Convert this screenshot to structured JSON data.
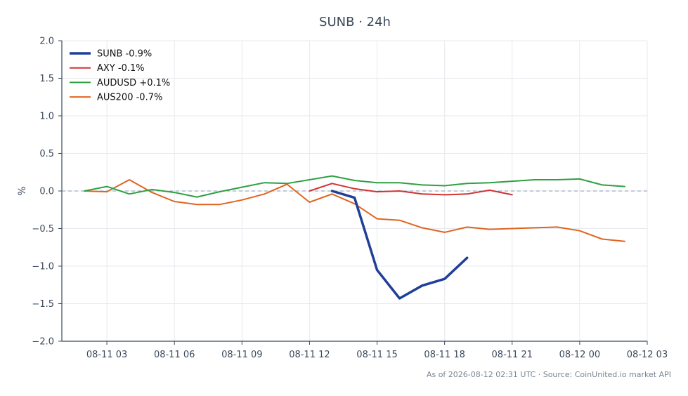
{
  "chart_data": {
    "type": "line",
    "title": "SUNB · 24h",
    "ylabel": "%",
    "ylim": [
      -2.0,
      2.0
    ],
    "yticks": [
      -2.0,
      -1.5,
      -1.0,
      -0.5,
      0.0,
      0.5,
      1.0,
      1.5,
      2.0
    ],
    "ytick_labels": [
      "−2.0",
      "−1.5",
      "−1.0",
      "−0.5",
      "0.0",
      "0.5",
      "1.0",
      "1.5",
      "2.0"
    ],
    "x_unit": "hours after 08-11 00:00 UTC",
    "xlim": [
      1.0,
      27.0
    ],
    "xticks": [
      3,
      6,
      9,
      12,
      15,
      18,
      21,
      24,
      27
    ],
    "xtick_labels": [
      "08-11 03",
      "08-11 06",
      "08-11 09",
      "08-11 12",
      "08-11 15",
      "08-11 18",
      "08-11 21",
      "08-12 00",
      "08-12 03"
    ],
    "baseline": 0.0,
    "grid": true,
    "legend_position": "top-left",
    "series": [
      {
        "name": "SUNB -0.9%",
        "color": "#1f3f99",
        "width": 3.5,
        "x": [
          13,
          14,
          15,
          16,
          17,
          18,
          19
        ],
        "y": [
          0.0,
          -0.09,
          -1.05,
          -1.43,
          -1.26,
          -1.17,
          -0.89
        ]
      },
      {
        "name": "AXY -0.1%",
        "color": "#cf3333",
        "width": 2,
        "x": [
          12,
          13,
          14,
          15,
          16,
          17,
          18,
          19,
          20,
          21
        ],
        "y": [
          0.0,
          0.1,
          0.03,
          -0.01,
          0.0,
          -0.04,
          -0.05,
          -0.04,
          0.01,
          -0.05
        ]
      },
      {
        "name": "AUDUSD +0.1%",
        "color": "#2ea043",
        "width": 2,
        "x": [
          2,
          3,
          4,
          5,
          6,
          7,
          8,
          9,
          10,
          11,
          12,
          13,
          14,
          15,
          16,
          17,
          18,
          19,
          20,
          21,
          22,
          23,
          24,
          25,
          26
        ],
        "y": [
          0.0,
          0.06,
          -0.04,
          0.02,
          -0.02,
          -0.08,
          -0.01,
          0.05,
          0.11,
          0.1,
          0.15,
          0.2,
          0.14,
          0.11,
          0.11,
          0.08,
          0.07,
          0.1,
          0.11,
          0.13,
          0.15,
          0.15,
          0.16,
          0.08,
          0.06
        ]
      },
      {
        "name": "AUS200 -0.7%",
        "color": "#e0641f",
        "width": 2,
        "x": [
          2,
          3,
          4,
          5,
          6,
          7,
          8,
          9,
          10,
          11,
          12,
          13,
          14,
          15,
          16,
          17,
          18,
          19,
          20,
          21,
          22,
          23,
          24,
          25,
          26
        ],
        "y": [
          0.0,
          -0.01,
          0.15,
          -0.02,
          -0.14,
          -0.18,
          -0.18,
          -0.12,
          -0.04,
          0.09,
          -0.15,
          -0.04,
          -0.17,
          -0.37,
          -0.39,
          -0.49,
          -0.55,
          -0.48,
          -0.51,
          -0.5,
          -0.49,
          -0.48,
          -0.53,
          -0.64,
          -0.67
        ]
      }
    ],
    "footer": "As of 2026-08-12 02:31 UTC · Source: CoinUnited.io market API"
  }
}
